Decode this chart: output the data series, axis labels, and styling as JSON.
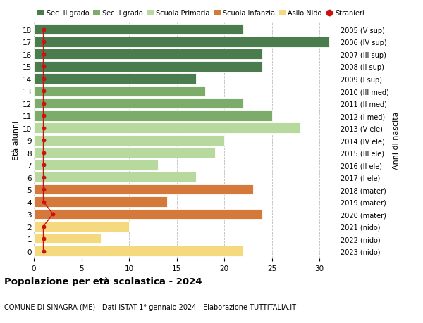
{
  "ages": [
    18,
    17,
    16,
    15,
    14,
    13,
    12,
    11,
    10,
    9,
    8,
    7,
    6,
    5,
    4,
    3,
    2,
    1,
    0
  ],
  "years": [
    "2005 (V sup)",
    "2006 (IV sup)",
    "2007 (III sup)",
    "2008 (II sup)",
    "2009 (I sup)",
    "2010 (III med)",
    "2011 (II med)",
    "2012 (I med)",
    "2013 (V ele)",
    "2014 (IV ele)",
    "2015 (III ele)",
    "2016 (II ele)",
    "2017 (I ele)",
    "2018 (mater)",
    "2019 (mater)",
    "2020 (mater)",
    "2021 (nido)",
    "2022 (nido)",
    "2023 (nido)"
  ],
  "values": [
    22,
    31,
    24,
    24,
    17,
    18,
    22,
    25,
    28,
    20,
    19,
    13,
    17,
    23,
    14,
    24,
    10,
    7,
    22
  ],
  "bar_colors": [
    "#4a7c4e",
    "#4a7c4e",
    "#4a7c4e",
    "#4a7c4e",
    "#4a7c4e",
    "#7dac6a",
    "#7dac6a",
    "#7dac6a",
    "#b8d99e",
    "#b8d99e",
    "#b8d99e",
    "#b8d99e",
    "#b8d99e",
    "#d4793a",
    "#d4793a",
    "#d4793a",
    "#f5d97e",
    "#f5d97e",
    "#f5d97e"
  ],
  "stranieri_values": [
    1,
    1,
    1,
    1,
    1,
    1,
    1,
    1,
    1,
    1,
    1,
    1,
    1,
    1,
    1,
    2,
    1,
    1,
    1
  ],
  "title": "Popolazione per età scolastica - 2024",
  "subtitle": "COMUNE DI SINAGRA (ME) - Dati ISTAT 1° gennaio 2024 - Elaborazione TUTTITALIA.IT",
  "ylabel_left": "Età alunni",
  "ylabel_right": "Anni di nascita",
  "xlim": [
    0,
    32
  ],
  "xticks": [
    0,
    5,
    10,
    15,
    20,
    25,
    30
  ],
  "legend_labels": [
    "Sec. II grado",
    "Sec. I grado",
    "Scuola Primaria",
    "Scuola Infanzia",
    "Asilo Nido",
    "Stranieri"
  ],
  "legend_colors": [
    "#4a7c4e",
    "#7dac6a",
    "#b8d99e",
    "#d4793a",
    "#f5d97e",
    "#cc1111"
  ],
  "stranieri_color": "#cc1111",
  "bar_height": 0.85,
  "grid_color": "#bbbbbb",
  "background_color": "#ffffff"
}
